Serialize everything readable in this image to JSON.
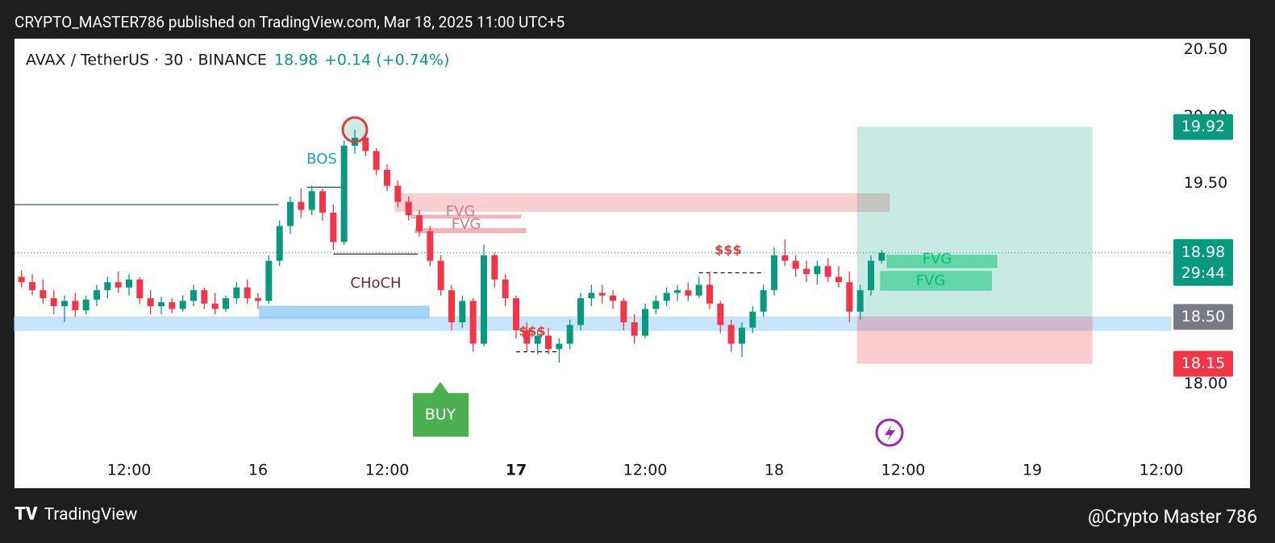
{
  "header": {
    "publisher": "CRYPTO_MASTER786 published on TradingView.com, Mar 18, 2025 11:00 UTC+5"
  },
  "footer": {
    "brand": "TradingView",
    "author": "@Crypto Master 786"
  },
  "chart_data": {
    "type": "candlestick",
    "symbol": "AVAX / TetherUS · 30 · BINANCE",
    "last_price": "18.98",
    "change": "+0.14 (+0.74%)",
    "up_color": "#089981",
    "down_color": "#f23645",
    "xlim": [
      1.35,
      108.9
    ],
    "ylim": [
      17.22,
      20.58
    ],
    "xticks": [
      {
        "value": 12,
        "label": "12:00"
      },
      {
        "value": 24,
        "label": "16"
      },
      {
        "value": 36,
        "label": "12:00"
      },
      {
        "value": 48,
        "label": "17"
      },
      {
        "value": 60,
        "label": "12:00"
      },
      {
        "value": 72,
        "label": "18"
      },
      {
        "value": 84,
        "label": "12:00"
      },
      {
        "value": 96,
        "label": "19"
      },
      {
        "value": 108,
        "label": "12:00"
      }
    ],
    "yticks": [
      {
        "value": 20.5,
        "label": "20.50"
      },
      {
        "value": 20,
        "label": "20.00"
      },
      {
        "value": 19.5,
        "label": "19.50"
      },
      {
        "value": 18,
        "label": "18.00"
      }
    ],
    "x": [
      2,
      3,
      4,
      5,
      6,
      7,
      8,
      9,
      10,
      11,
      12,
      13,
      14,
      15,
      16,
      17,
      18,
      19,
      20,
      21,
      22,
      23,
      24,
      25,
      26,
      27,
      28,
      29,
      30,
      31,
      32,
      33,
      34,
      35,
      36,
      37,
      38,
      39,
      40,
      41,
      42,
      43,
      44,
      45,
      46,
      47,
      48,
      49,
      50,
      51,
      52,
      53,
      54,
      55,
      56,
      57,
      58,
      59,
      60,
      61,
      62,
      63,
      64,
      65,
      66,
      67,
      68,
      69,
      70,
      71,
      72,
      73,
      74,
      75,
      76,
      77,
      78,
      79,
      80,
      81,
      82
    ],
    "candles": [
      [
        18.8,
        18.85,
        18.72,
        18.76
      ],
      [
        18.76,
        18.82,
        18.66,
        18.7
      ],
      [
        18.7,
        18.78,
        18.6,
        18.64
      ],
      [
        18.64,
        18.7,
        18.52,
        18.58
      ],
      [
        18.58,
        18.66,
        18.46,
        18.62
      ],
      [
        18.62,
        18.68,
        18.5,
        18.55
      ],
      [
        18.55,
        18.66,
        18.52,
        18.63
      ],
      [
        18.63,
        18.74,
        18.58,
        18.7
      ],
      [
        18.7,
        18.8,
        18.64,
        18.76
      ],
      [
        18.76,
        18.84,
        18.68,
        18.72
      ],
      [
        18.72,
        18.82,
        18.66,
        18.78
      ],
      [
        18.78,
        18.8,
        18.6,
        18.64
      ],
      [
        18.64,
        18.7,
        18.52,
        18.58
      ],
      [
        18.58,
        18.65,
        18.52,
        18.61
      ],
      [
        18.61,
        18.64,
        18.53,
        18.56
      ],
      [
        18.56,
        18.66,
        18.54,
        18.62
      ],
      [
        18.62,
        18.74,
        18.58,
        18.7
      ],
      [
        18.7,
        18.72,
        18.56,
        18.6
      ],
      [
        18.6,
        18.68,
        18.52,
        18.56
      ],
      [
        18.56,
        18.66,
        18.54,
        18.64
      ],
      [
        18.64,
        18.76,
        18.6,
        18.72
      ],
      [
        18.72,
        18.78,
        18.6,
        18.64
      ],
      [
        18.64,
        18.68,
        18.56,
        18.62
      ],
      [
        18.62,
        18.96,
        18.6,
        18.92
      ],
      [
        18.92,
        19.22,
        18.88,
        19.18
      ],
      [
        19.18,
        19.4,
        19.12,
        19.36
      ],
      [
        19.36,
        19.46,
        19.24,
        19.3
      ],
      [
        19.3,
        19.48,
        19.26,
        19.44
      ],
      [
        19.44,
        19.46,
        19.22,
        19.28
      ],
      [
        19.28,
        19.34,
        19.0,
        19.06
      ],
      [
        19.06,
        19.82,
        19.04,
        19.78
      ],
      [
        19.78,
        19.9,
        19.72,
        19.84
      ],
      [
        19.84,
        19.86,
        19.7,
        19.74
      ],
      [
        19.74,
        19.76,
        19.56,
        19.6
      ],
      [
        19.6,
        19.64,
        19.44,
        19.48
      ],
      [
        19.48,
        19.52,
        19.32,
        19.36
      ],
      [
        19.36,
        19.4,
        19.22,
        19.26
      ],
      [
        19.26,
        19.3,
        19.1,
        19.14
      ],
      [
        19.14,
        19.18,
        18.88,
        18.92
      ],
      [
        18.92,
        18.96,
        18.66,
        18.7
      ],
      [
        18.7,
        18.74,
        18.4,
        18.46
      ],
      [
        18.46,
        18.66,
        18.42,
        18.62
      ],
      [
        18.62,
        18.64,
        18.24,
        18.3
      ],
      [
        18.3,
        19.04,
        18.28,
        18.96
      ],
      [
        18.96,
        18.98,
        18.72,
        18.78
      ],
      [
        18.78,
        18.82,
        18.58,
        18.64
      ],
      [
        18.64,
        18.66,
        18.34,
        18.4
      ],
      [
        18.4,
        18.46,
        18.24,
        18.3
      ],
      [
        18.3,
        18.4,
        18.22,
        18.36
      ],
      [
        18.36,
        18.42,
        18.22,
        18.26
      ],
      [
        18.26,
        18.34,
        18.16,
        18.3
      ],
      [
        18.3,
        18.48,
        18.26,
        18.44
      ],
      [
        18.44,
        18.68,
        18.4,
        18.64
      ],
      [
        18.64,
        18.74,
        18.58,
        18.68
      ],
      [
        18.68,
        18.74,
        18.6,
        18.66
      ],
      [
        18.66,
        18.7,
        18.56,
        18.62
      ],
      [
        18.62,
        18.64,
        18.4,
        18.46
      ],
      [
        18.46,
        18.52,
        18.3,
        18.36
      ],
      [
        18.36,
        18.6,
        18.34,
        18.56
      ],
      [
        18.56,
        18.66,
        18.52,
        18.62
      ],
      [
        18.62,
        18.72,
        18.58,
        18.68
      ],
      [
        18.68,
        18.74,
        18.62,
        18.7
      ],
      [
        18.7,
        18.76,
        18.62,
        18.66
      ],
      [
        18.66,
        18.8,
        18.64,
        18.74
      ],
      [
        18.74,
        18.84,
        18.56,
        18.6
      ],
      [
        18.6,
        18.62,
        18.38,
        18.44
      ],
      [
        18.44,
        18.48,
        18.24,
        18.3
      ],
      [
        18.3,
        18.46,
        18.2,
        18.42
      ],
      [
        18.42,
        18.58,
        18.38,
        18.54
      ],
      [
        18.54,
        18.74,
        18.5,
        18.7
      ],
      [
        18.7,
        19.02,
        18.66,
        18.96
      ],
      [
        18.96,
        19.08,
        18.88,
        18.92
      ],
      [
        18.92,
        18.96,
        18.8,
        18.86
      ],
      [
        18.86,
        18.92,
        18.76,
        18.82
      ],
      [
        18.82,
        18.92,
        18.74,
        18.88
      ],
      [
        18.88,
        18.94,
        18.76,
        18.8
      ],
      [
        18.8,
        18.88,
        18.72,
        18.76
      ],
      [
        18.76,
        18.84,
        18.46,
        18.54
      ],
      [
        18.54,
        18.74,
        18.48,
        18.7
      ],
      [
        18.7,
        18.96,
        18.66,
        18.92
      ],
      [
        18.92,
        19.0,
        18.9,
        18.98
      ]
    ],
    "zones": [
      {
        "x": [
          1.35,
          108.9
        ],
        "y": [
          18.4,
          18.5
        ],
        "color": "#bbdefb"
      },
      {
        "x": [
          24.15,
          39.9
        ],
        "y": [
          18.49,
          18.58
        ],
        "color": "#90caf9"
      },
      {
        "x": [
          36.75,
          82.7
        ],
        "y": [
          19.29,
          19.42
        ],
        "color": "#f8c4c7"
      },
      {
        "x": [
          38.25,
          48.4
        ],
        "y": [
          19.24,
          19.26
        ],
        "color": "#f4a3a8"
      },
      {
        "x": [
          38.6,
          48.9
        ],
        "y": [
          19.13,
          19.16
        ],
        "color": "#f4a3a8"
      },
      {
        "x": [
          82.5,
          92.7
        ],
        "y": [
          18.87,
          18.96
        ],
        "color": "#5ee0a0"
      },
      {
        "x": [
          81.9,
          92.2
        ],
        "y": [
          18.7,
          18.84
        ],
        "color": "#5ee0a0"
      }
    ],
    "position": {
      "x": [
        79.7,
        101.6
      ],
      "target": 19.92,
      "entry": 18.5,
      "stop": 18.15
    },
    "levels": [
      {
        "x": [
          1.35,
          25.9
        ],
        "value": 19.34,
        "dashed": false,
        "color": "#1b5e50"
      },
      {
        "x": [
          28.5,
          31.9
        ],
        "value": 19.47,
        "dashed": false,
        "color": "#1b5e50"
      },
      {
        "x": [
          31.0,
          38.85
        ],
        "value": 18.97,
        "dashed": false,
        "color": "#5d1f2a"
      },
      {
        "x": [
          65.0,
          71.1
        ],
        "value": 18.83,
        "dashed": true,
        "color": "#222"
      },
      {
        "x": [
          48.0,
          51.75
        ],
        "value": 18.24,
        "dashed": true,
        "color": "#222"
      }
    ],
    "annotations": {
      "bos": "BOS",
      "choch": "CHoCH",
      "fvg": "FVG",
      "liquidity": "$$$",
      "buy": "BUY"
    },
    "price_tags": [
      {
        "value": 19.92,
        "label": "19.92",
        "color": "#089981"
      },
      {
        "value": 18.98,
        "label": "18.98",
        "color": "#089981",
        "countdown": "29:44"
      },
      {
        "value": 18.5,
        "label": "18.50",
        "color": "#787b86"
      },
      {
        "value": 18.15,
        "label": "18.15",
        "color": "#f23645"
      }
    ]
  }
}
